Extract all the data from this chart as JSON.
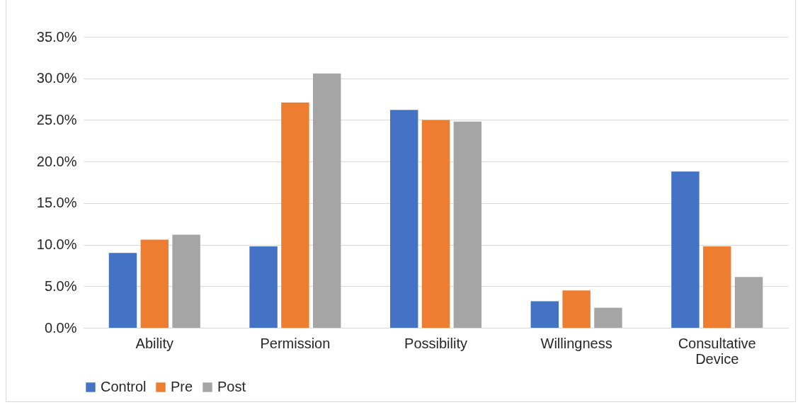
{
  "chart_data": {
    "type": "bar",
    "categories": [
      "Ability",
      "Permission",
      "Possibility",
      "Willingness",
      "Consultative Device"
    ],
    "series": [
      {
        "name": "Control",
        "color": "#4472c4",
        "values": [
          9.0,
          9.8,
          26.2,
          3.2,
          18.8
        ]
      },
      {
        "name": "Pre",
        "color": "#ed7d31",
        "values": [
          10.6,
          27.1,
          25.0,
          4.5,
          9.8
        ]
      },
      {
        "name": "Post",
        "color": "#a5a5a5",
        "values": [
          11.2,
          30.6,
          24.8,
          2.4,
          6.1
        ]
      }
    ],
    "ylim": [
      0,
      35
    ],
    "yticks": [
      {
        "value": 0,
        "label": "0.0%"
      },
      {
        "value": 5,
        "label": "5.0%"
      },
      {
        "value": 10,
        "label": "10.0%"
      },
      {
        "value": 15,
        "label": "15.0%"
      },
      {
        "value": 20,
        "label": "20.0%"
      },
      {
        "value": 25,
        "label": "25.0%"
      },
      {
        "value": 30,
        "label": "30.0%"
      },
      {
        "value": 35,
        "label": "35.0%"
      }
    ],
    "grid": "y",
    "legend": "bottom"
  }
}
